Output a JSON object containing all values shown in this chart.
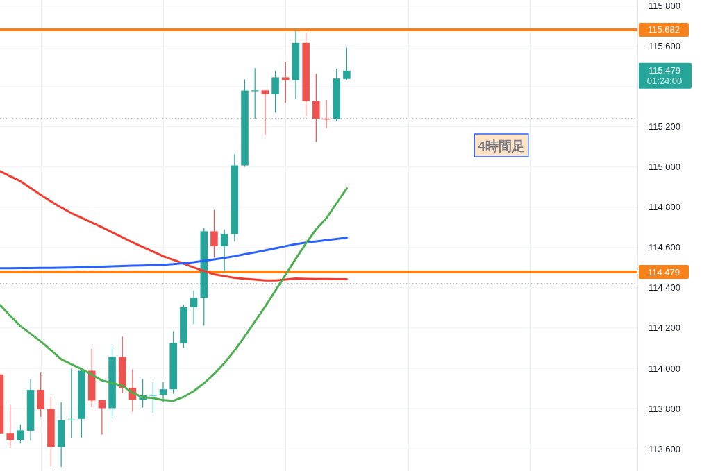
{
  "chart_data": {
    "type": "candlestick",
    "categories": [
      null,
      null,
      null,
      null,
      null,
      null,
      null,
      null,
      null,
      null,
      null,
      null,
      null,
      null,
      null,
      null,
      null,
      null,
      null,
      null,
      null,
      null,
      null,
      null,
      null,
      null,
      null,
      null,
      null,
      null,
      null,
      null,
      null,
      null,
      null,
      null,
      null,
      null,
      null,
      null,
      null,
      null,
      null,
      null,
      null,
      null,
      null,
      null,
      null,
      null,
      null,
      null,
      null,
      null,
      null,
      null,
      null,
      null,
      null,
      null,
      null,
      null,
      null
    ],
    "ohlc": [
      [
        113.97,
        113.97,
        113.677,
        113.677
      ],
      [
        113.679,
        113.82,
        113.604,
        113.644
      ],
      [
        113.644,
        113.722,
        113.627,
        113.692
      ],
      [
        113.69,
        113.947,
        113.641,
        113.893
      ],
      [
        113.893,
        113.979,
        113.76,
        113.797
      ],
      [
        113.798,
        113.861,
        113.511,
        113.609
      ],
      [
        113.609,
        113.831,
        113.511,
        113.743
      ],
      [
        113.744,
        113.999,
        113.652,
        113.746
      ],
      [
        113.749,
        113.99,
        113.656,
        113.988
      ],
      [
        113.988,
        114.097,
        113.806,
        113.84
      ],
      [
        113.843,
        113.843,
        113.671,
        113.802
      ],
      [
        113.802,
        114.111,
        113.751,
        114.057
      ],
      [
        114.057,
        114.158,
        113.877,
        113.902
      ],
      [
        113.902,
        113.995,
        113.785,
        113.845
      ],
      [
        113.845,
        113.947,
        113.805,
        113.866
      ],
      [
        113.866,
        113.93,
        113.779,
        113.868
      ],
      [
        113.868,
        113.932,
        113.831,
        113.896
      ],
      [
        113.896,
        114.184,
        113.873,
        114.126
      ],
      [
        114.126,
        114.315,
        114.102,
        114.304
      ],
      [
        114.304,
        114.387,
        114.221,
        114.35
      ],
      [
        114.35,
        114.698,
        114.213,
        114.681
      ],
      [
        114.681,
        114.786,
        114.55,
        114.607
      ],
      [
        114.607,
        114.69,
        114.478,
        114.667
      ],
      [
        114.667,
        115.064,
        114.63,
        115.008
      ],
      [
        115.008,
        115.436,
        115.001,
        115.38
      ],
      [
        115.38,
        115.491,
        115.239,
        115.381
      ],
      [
        115.381,
        115.381,
        115.16,
        115.361
      ],
      [
        115.361,
        115.478,
        115.271,
        115.446
      ],
      [
        115.446,
        115.523,
        115.319,
        115.432
      ],
      [
        115.432,
        115.682,
        115.338,
        115.617
      ],
      [
        115.617,
        115.668,
        115.254,
        115.328
      ],
      [
        115.328,
        115.464,
        115.125,
        115.24
      ],
      [
        115.24,
        115.334,
        115.193,
        115.239
      ],
      [
        115.24,
        115.489,
        115.226,
        115.44
      ],
      [
        115.438,
        115.593,
        115.432,
        115.479
      ],
      null,
      null,
      null,
      null,
      null,
      null,
      null,
      null,
      null,
      null,
      null,
      null,
      null,
      null,
      null,
      null,
      null,
      null,
      null,
      null,
      null,
      null,
      null,
      null,
      null,
      null,
      null,
      null
    ],
    "colors": [
      "#ef5350",
      "#ef5350",
      "#26a69a",
      "#26a69a",
      "#ef5350",
      "#ef5350",
      "#26a69a",
      "#26a69a",
      "#26a69a",
      "#ef5350",
      "#ef5350",
      "#26a69a",
      "#ef5350",
      "#ef5350",
      "#26a69a",
      "#26a69a",
      "#26a69a",
      "#26a69a",
      "#26a69a",
      "#26a69a",
      "#26a69a",
      "#ef5350",
      "#26a69a",
      "#26a69a",
      "#26a69a",
      "#26a69a",
      "#ef5350",
      "#26a69a",
      "#ef5350",
      "#26a69a",
      "#ef5350",
      "#ef5350",
      "#ef5350",
      "#26a69a",
      "#26a69a",
      null,
      null,
      null,
      null,
      null,
      null,
      null,
      null,
      null,
      null,
      null,
      null,
      null,
      null,
      null,
      null,
      null,
      null,
      null,
      null,
      null,
      null,
      null,
      null,
      null,
      null,
      null,
      null
    ],
    "series": [
      {
        "type": "line",
        "color": "#f23a2e",
        "values": [
          114.979,
          114.954,
          114.93,
          114.896,
          114.862,
          114.829,
          114.799,
          114.771,
          114.748,
          114.724,
          114.701,
          114.676,
          114.651,
          114.626,
          114.603,
          114.58,
          114.557,
          114.539,
          114.52,
          114.501,
          114.484,
          114.467,
          114.458,
          114.45,
          114.445,
          114.441,
          114.437,
          114.437,
          114.441,
          114.446,
          114.445,
          114.444,
          114.444,
          114.443,
          114.443,
          null,
          null,
          null,
          null,
          null,
          null,
          null,
          null,
          null,
          null,
          null,
          null,
          null,
          null,
          null,
          null,
          null,
          null,
          null,
          null,
          null,
          null,
          null,
          null,
          null,
          null,
          null,
          null
        ]
      },
      {
        "type": "line",
        "color": "#2962ff",
        "values": [
          114.497,
          114.497,
          114.498,
          114.498,
          114.499,
          114.499,
          114.5,
          114.501,
          114.502,
          114.504,
          114.505,
          114.507,
          114.508,
          114.51,
          114.511,
          114.513,
          114.514,
          114.518,
          114.522,
          114.527,
          114.534,
          114.541,
          114.549,
          114.557,
          114.567,
          114.576,
          114.586,
          114.596,
          114.607,
          114.617,
          114.625,
          114.631,
          114.637,
          114.643,
          114.649,
          null,
          null,
          null,
          null,
          null,
          null,
          null,
          null,
          null,
          null,
          null,
          null,
          null,
          null,
          null,
          null,
          null,
          null,
          null,
          null,
          null,
          null,
          null,
          null,
          null,
          null,
          null,
          null
        ]
      },
      {
        "type": "line",
        "color": "#4caf50",
        "values": [
          114.315,
          114.261,
          114.21,
          114.172,
          114.134,
          114.09,
          114.045,
          114.02,
          113.996,
          113.968,
          113.94,
          113.927,
          113.914,
          113.879,
          113.856,
          113.853,
          113.842,
          113.839,
          113.858,
          113.887,
          113.926,
          113.972,
          114.026,
          114.089,
          114.159,
          114.232,
          114.307,
          114.386,
          114.465,
          114.544,
          114.621,
          114.691,
          114.746,
          114.82,
          114.894,
          null,
          null,
          null,
          null,
          null,
          null,
          null,
          null,
          null,
          null,
          null,
          null,
          null,
          null,
          null,
          null,
          null,
          null,
          null,
          null,
          null,
          null,
          null,
          null,
          null,
          null,
          null,
          null
        ]
      }
    ],
    "ylim": [
      113.49,
      115.83
    ],
    "yticks": [
      {
        "value": 113.6,
        "label": "113.600"
      },
      {
        "value": 113.8,
        "label": "113.800"
      },
      {
        "value": 114.0,
        "label": "114.000"
      },
      {
        "value": 114.2,
        "label": "114.200"
      },
      {
        "value": 114.4,
        "label": "114.400"
      },
      {
        "value": 114.6,
        "label": "114.600"
      },
      {
        "value": 114.8,
        "label": "114.800"
      },
      {
        "value": 115.0,
        "label": "115.000"
      },
      {
        "value": 115.2,
        "label": "115.200"
      },
      {
        "value": 115.4,
        "label": null
      },
      {
        "value": 115.6,
        "label": "115.600"
      },
      {
        "value": 115.8,
        "label": "115.800"
      }
    ],
    "ref_lines": [
      {
        "axis": "y",
        "value": 115.682,
        "label": "115.682",
        "color": "#f7821b"
      },
      {
        "axis": "y",
        "value": 114.479,
        "label": "114.479",
        "color": "#f7821b"
      },
      {
        "axis": "y",
        "value": 115.24,
        "color": "#787b86",
        "line_style": "dotted"
      },
      {
        "axis": "y",
        "value": 114.42,
        "color": "#787b86",
        "line_style": "dotted"
      }
    ],
    "annotations": [
      "115.479",
      "01:24:00",
      "4時間足"
    ],
    "grid": true,
    "tick_labels": "y"
  }
}
